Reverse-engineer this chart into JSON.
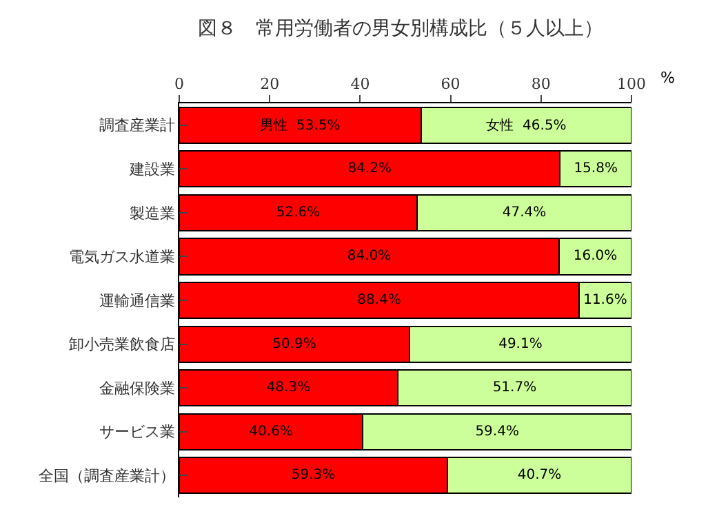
{
  "chart_data": {
    "type": "bar",
    "orientation": "horizontal",
    "stacked": true,
    "title": "図８　常用労働者の男女別構成比（５人以上）",
    "xlabel": "%",
    "categories": [
      "調査産業計",
      "建設業",
      "製造業",
      "電気ガス水道業",
      "運輸通信業",
      "卸小売業飲食店",
      "金融保険業",
      "サービス業",
      "全国（調査産業計）"
    ],
    "series": [
      {
        "color": "#ff0000",
        "values": [
          53.5,
          84.2,
          52.6,
          84.0,
          88.4,
          50.9,
          48.3,
          40.6,
          59.3
        ],
        "value_labels": [
          "男性  53.5%",
          "84.2%",
          "52.6%",
          "84.0%",
          "88.4%",
          "50.9%",
          "48.3%",
          "40.6%",
          "59.3%"
        ]
      },
      {
        "color": "#ccff99",
        "values": [
          46.5,
          15.8,
          47.4,
          16.0,
          11.6,
          49.1,
          51.7,
          59.4,
          40.7
        ],
        "value_labels": [
          "女性  46.5%",
          "15.8%",
          "47.4%",
          "16.0%",
          "11.6%",
          "49.1%",
          "51.7%",
          "59.4%",
          "40.7%"
        ]
      }
    ],
    "xlim": [
      0,
      100
    ],
    "xticks": [
      0,
      20,
      40,
      60,
      80,
      100
    ]
  }
}
